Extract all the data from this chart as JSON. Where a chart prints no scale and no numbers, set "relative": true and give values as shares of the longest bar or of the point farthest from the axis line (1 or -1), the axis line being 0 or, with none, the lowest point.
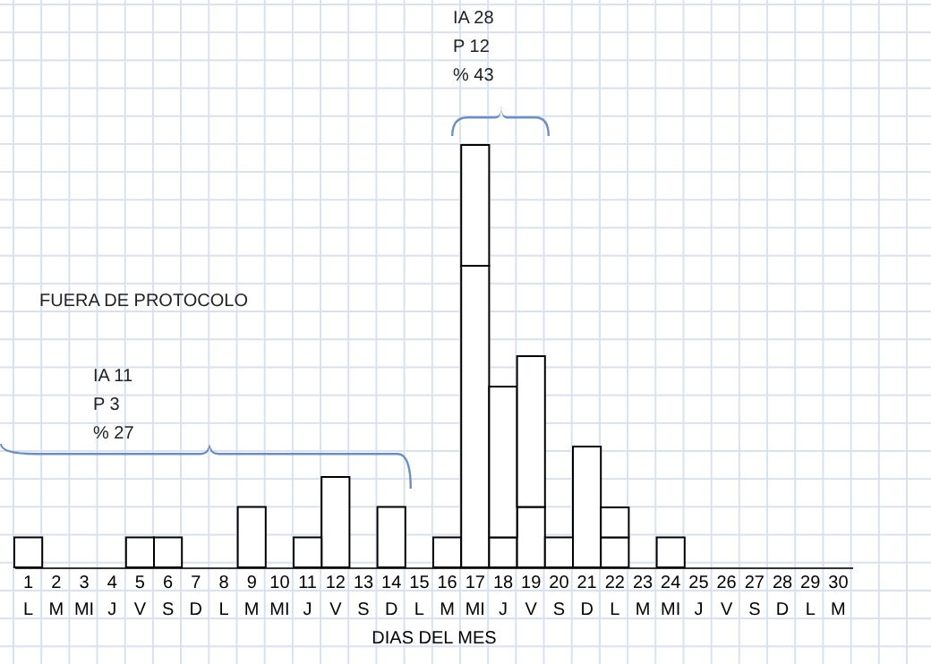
{
  "chart_data": {
    "type": "bar",
    "stacked": true,
    "relative": true,
    "xlabel": "DIAS DEL MES",
    "categories": [
      "1\nL",
      "2\nM",
      "3\nMI",
      "4\nJ",
      "5\nV",
      "6\nS",
      "7\nD",
      "8\nL",
      "9\nM",
      "10\nMI",
      "11\nJ",
      "12\nV",
      "13\nS",
      "14\nD",
      "15\nL",
      "16\nM",
      "17\nMI",
      "18\nJ",
      "19\nV",
      "20\nS",
      "21\nD",
      "22\nL",
      "23\nM",
      "24\nMI",
      "25\nJ",
      "26\nV",
      "27\nS",
      "28\nD",
      "29\nL",
      "30\nM"
    ],
    "series": [
      {
        "color": "#ffffff",
        "values": [
          null,
          null,
          null,
          null,
          0.071,
          0.071,
          null,
          null,
          0.143,
          null,
          null,
          0.214,
          null,
          null,
          null,
          0.071,
          0.714,
          0.071,
          0.143,
          0.071,
          0.286,
          0.071,
          null,
          0.071,
          null,
          null,
          null,
          null,
          null,
          null
        ]
      },
      {
        "color": "#ffffff",
        "values": [
          0.071,
          null,
          null,
          null,
          null,
          null,
          null,
          null,
          null,
          null,
          0.071,
          null,
          null,
          0.143,
          null,
          null,
          0.286,
          0.357,
          0.357,
          null,
          null,
          0.071,
          null,
          null,
          null,
          null,
          null,
          null,
          null,
          null
        ]
      }
    ],
    "annotations": [
      "FUERA DE PROTOCOLO",
      "IA 11",
      "P 3",
      "% 27",
      "IA 28",
      "P 12",
      "% 43"
    ],
    "legend": false
  }
}
